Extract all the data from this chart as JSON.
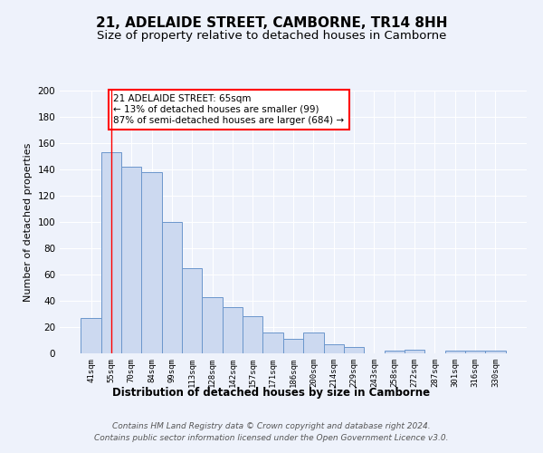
{
  "title": "21, ADELAIDE STREET, CAMBORNE, TR14 8HH",
  "subtitle": "Size of property relative to detached houses in Camborne",
  "xlabel": "Distribution of detached houses by size in Camborne",
  "ylabel": "Number of detached properties",
  "categories": [
    "41sqm",
    "55sqm",
    "70sqm",
    "84sqm",
    "99sqm",
    "113sqm",
    "128sqm",
    "142sqm",
    "157sqm",
    "171sqm",
    "186sqm",
    "200sqm",
    "214sqm",
    "229sqm",
    "243sqm",
    "258sqm",
    "272sqm",
    "287sqm",
    "301sqm",
    "316sqm",
    "330sqm"
  ],
  "values": [
    27,
    153,
    142,
    138,
    100,
    65,
    43,
    35,
    28,
    16,
    11,
    16,
    7,
    5,
    0,
    2,
    3,
    0,
    2,
    2,
    2
  ],
  "bar_color": "#ccd9f0",
  "bar_edge_color": "#6b96cc",
  "red_line_index": 1,
  "annotation_text": "21 ADELAIDE STREET: 65sqm\n← 13% of detached houses are smaller (99)\n87% of semi-detached houses are larger (684) →",
  "annotation_box_color": "white",
  "annotation_box_edge_color": "red",
  "ylim": [
    0,
    200
  ],
  "yticks": [
    0,
    20,
    40,
    60,
    80,
    100,
    120,
    140,
    160,
    180,
    200
  ],
  "footer_text": "Contains HM Land Registry data © Crown copyright and database right 2024.\nContains public sector information licensed under the Open Government Licence v3.0.",
  "background_color": "#eef2fb",
  "grid_color": "#ffffff",
  "title_fontsize": 11,
  "subtitle_fontsize": 9.5,
  "annotation_fontsize": 7.5,
  "footer_fontsize": 6.5,
  "xlabel_fontsize": 8.5,
  "ylabel_fontsize": 8
}
